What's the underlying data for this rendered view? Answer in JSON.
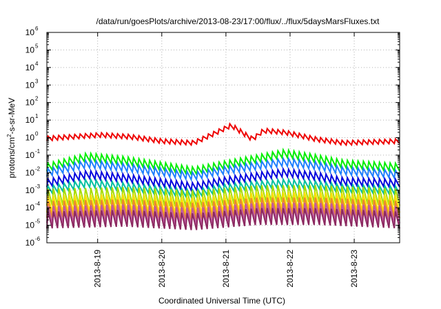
{
  "chart_data": {
    "type": "line",
    "title": "/data/run/goesPlots/archive/2013-08-23/17:00/flux/../flux/5daysMarsFluxes.txt",
    "xlabel": "Coordinated Universal Time (UTC)",
    "ylabel": {
      "base": "protons/cm",
      "sup": "2",
      "rest": "-s-sr-MeV"
    },
    "y_scale": "log",
    "ylim_exponents": [
      -6,
      6
    ],
    "y_ticks": [
      {
        "base": "10",
        "exp": "-6"
      },
      {
        "base": "10",
        "exp": "-5"
      },
      {
        "base": "10",
        "exp": "-4"
      },
      {
        "base": "10",
        "exp": "-3"
      },
      {
        "base": "10",
        "exp": "-2"
      },
      {
        "base": "10",
        "exp": "-1"
      },
      {
        "base": "10",
        "exp": "0"
      },
      {
        "base": "10",
        "exp": "1"
      },
      {
        "base": "10",
        "exp": "2"
      },
      {
        "base": "10",
        "exp": "3"
      },
      {
        "base": "10",
        "exp": "4"
      },
      {
        "base": "10",
        "exp": "5"
      },
      {
        "base": "10",
        "exp": "6"
      }
    ],
    "x_range_days": [
      "2013-08-18T05:00",
      "2013-08-23T17:00"
    ],
    "x_ticks": [
      {
        "label": "2013-8-19",
        "value": "2013-08-19"
      },
      {
        "label": "2013-8-20",
        "value": "2013-08-20"
      },
      {
        "label": "2013-8-21",
        "value": "2013-08-21"
      },
      {
        "label": "2013-8-22",
        "value": "2013-08-22"
      },
      {
        "label": "2013-8-23",
        "value": "2013-08-23"
      }
    ],
    "grid": true,
    "legend": "none",
    "series": [
      {
        "color": "#ee0000",
        "cycles_per_day": 12,
        "baseline_log": [
          [
            "2013-08-18T05:00",
            -0.05
          ],
          [
            "2013-08-18T20:00",
            0.1
          ],
          [
            "2013-08-19T01:00",
            0.15
          ],
          [
            "2013-08-19T12:00",
            0.05
          ],
          [
            "2013-08-20T00:00",
            -0.2
          ],
          [
            "2013-08-20T12:00",
            -0.3
          ],
          [
            "2013-08-20T22:00",
            0.4
          ],
          [
            "2013-08-21T02:00",
            0.7
          ],
          [
            "2013-08-21T10:00",
            -0.1
          ],
          [
            "2013-08-21T14:00",
            0.4
          ],
          [
            "2013-08-21T22:00",
            0.3
          ],
          [
            "2013-08-22T10:00",
            -0.1
          ],
          [
            "2013-08-22T20:00",
            -0.3
          ],
          [
            "2013-08-23T17:00",
            -0.2
          ]
        ]
      },
      {
        "color": "#00ee00",
        "cycles_per_day": 12,
        "baseline_log": [
          [
            "2013-08-18T05:00",
            -1.7
          ],
          [
            "2013-08-18T20:00",
            -1.1
          ],
          [
            "2013-08-19T10:00",
            -1.3
          ],
          [
            "2013-08-20T12:00",
            -1.9
          ],
          [
            "2013-08-20T22:00",
            -1.6
          ],
          [
            "2013-08-21T12:00",
            -1.2
          ],
          [
            "2013-08-21T22:00",
            -0.9
          ],
          [
            "2013-08-22T10:00",
            -1.2
          ],
          [
            "2013-08-22T20:00",
            -1.5
          ],
          [
            "2013-08-23T17:00",
            -1.7
          ]
        ]
      },
      {
        "color": "#1f7fff",
        "cycles_per_day": 12,
        "baseline_log": [
          [
            "2013-08-18T05:00",
            -2.0
          ],
          [
            "2013-08-18T20:00",
            -1.5
          ],
          [
            "2013-08-19T10:00",
            -1.7
          ],
          [
            "2013-08-20T12:00",
            -2.2
          ],
          [
            "2013-08-20T22:00",
            -1.9
          ],
          [
            "2013-08-21T12:00",
            -1.6
          ],
          [
            "2013-08-21T22:00",
            -1.4
          ],
          [
            "2013-08-22T10:00",
            -1.6
          ],
          [
            "2013-08-22T20:00",
            -1.9
          ],
          [
            "2013-08-23T17:00",
            -2.1
          ]
        ]
      },
      {
        "color": "#0000dd",
        "cycles_per_day": 12,
        "baseline_log": [
          [
            "2013-08-18T05:00",
            -2.6
          ],
          [
            "2013-08-18T20:00",
            -2.1
          ],
          [
            "2013-08-19T10:00",
            -2.3
          ],
          [
            "2013-08-20T12:00",
            -2.8
          ],
          [
            "2013-08-20T22:00",
            -2.5
          ],
          [
            "2013-08-21T12:00",
            -2.2
          ],
          [
            "2013-08-21T22:00",
            -2.0
          ],
          [
            "2013-08-22T10:00",
            -2.2
          ],
          [
            "2013-08-22T20:00",
            -2.5
          ],
          [
            "2013-08-23T17:00",
            -2.6
          ]
        ]
      },
      {
        "color": "#00c0a0",
        "cycles_per_day": 12,
        "baseline_log": [
          [
            "2013-08-18T05:00",
            -3.0
          ],
          [
            "2013-08-18T20:00",
            -2.6
          ],
          [
            "2013-08-19T10:00",
            -2.8
          ],
          [
            "2013-08-20T12:00",
            -3.2
          ],
          [
            "2013-08-20T22:00",
            -2.9
          ],
          [
            "2013-08-21T12:00",
            -2.7
          ],
          [
            "2013-08-21T22:00",
            -2.6
          ],
          [
            "2013-08-22T10:00",
            -2.7
          ],
          [
            "2013-08-22T20:00",
            -2.9
          ],
          [
            "2013-08-23T17:00",
            -3.0
          ]
        ]
      },
      {
        "color": "#a8dc00",
        "cycles_per_day": 12,
        "baseline_log": [
          [
            "2013-08-18T05:00",
            -3.4
          ],
          [
            "2013-08-19T10:00",
            -3.3
          ],
          [
            "2013-08-20T12:00",
            -3.5
          ],
          [
            "2013-08-21T12:00",
            -3.2
          ],
          [
            "2013-08-22T10:00",
            -3.2
          ],
          [
            "2013-08-23T17:00",
            -3.4
          ]
        ]
      },
      {
        "color": "#ffe000",
        "cycles_per_day": 12,
        "baseline_log": [
          [
            "2013-08-18T05:00",
            -3.8
          ],
          [
            "2013-08-19T10:00",
            -3.7
          ],
          [
            "2013-08-20T12:00",
            -3.9
          ],
          [
            "2013-08-21T12:00",
            -3.6
          ],
          [
            "2013-08-22T10:00",
            -3.6
          ],
          [
            "2013-08-23T17:00",
            -3.8
          ]
        ]
      },
      {
        "color": "#e88830",
        "cycles_per_day": 12,
        "baseline_log": [
          [
            "2013-08-18T05:00",
            -4.1
          ],
          [
            "2013-08-19T10:00",
            -4.0
          ],
          [
            "2013-08-20T12:00",
            -4.2
          ],
          [
            "2013-08-21T12:00",
            -3.9
          ],
          [
            "2013-08-22T10:00",
            -3.9
          ],
          [
            "2013-08-23T17:00",
            -4.1
          ]
        ]
      },
      {
        "color": "#c05aa0",
        "cycles_per_day": 12,
        "baseline_log": [
          [
            "2013-08-18T05:00",
            -4.4
          ],
          [
            "2013-08-19T10:00",
            -4.3
          ],
          [
            "2013-08-20T12:00",
            -4.5
          ],
          [
            "2013-08-21T12:00",
            -4.2
          ],
          [
            "2013-08-22T10:00",
            -4.2
          ],
          [
            "2013-08-23T17:00",
            -4.4
          ]
        ]
      },
      {
        "color": "#8c2860",
        "cycles_per_day": 12,
        "baseline_log": [
          [
            "2013-08-18T05:00",
            -4.7
          ],
          [
            "2013-08-19T10:00",
            -4.6
          ],
          [
            "2013-08-20T12:00",
            -4.8
          ],
          [
            "2013-08-21T12:00",
            -4.5
          ],
          [
            "2013-08-22T10:00",
            -4.5
          ],
          [
            "2013-08-23T17:00",
            -4.7
          ]
        ]
      }
    ]
  }
}
